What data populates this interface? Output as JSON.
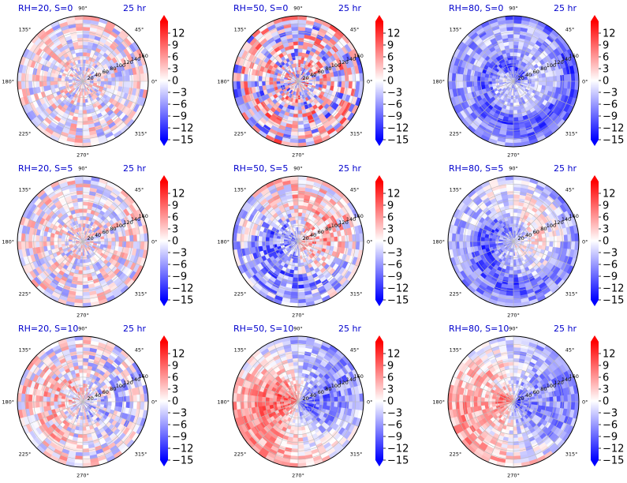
{
  "figure": {
    "layout": {
      "rows": 3,
      "cols": 3
    },
    "time_label": "25 hr",
    "title_color": "#0000cc",
    "palette": {
      "negative": "#0000ff",
      "neutral": "#ffffff",
      "positive": "#ff0000"
    }
  },
  "chart_data": [
    {
      "type": "heatmap",
      "projection": "polar",
      "title": "RH=20, S=0",
      "time": "25 hr",
      "angle_tick_labels": [
        "0°",
        "45°",
        "90°",
        "135°",
        "180°",
        "225°",
        "270°",
        "315°"
      ],
      "radial_tick_labels": [
        "20",
        "40",
        "60",
        "80",
        "100",
        "120",
        "140",
        "160"
      ],
      "rlim": [
        0,
        160
      ],
      "colorbar": {
        "ticks": [
          12,
          9,
          6,
          3,
          0,
          -3,
          -6,
          -9,
          -12,
          -15
        ],
        "vmin": -15,
        "vmax": 15,
        "extend": "both"
      },
      "field": {
        "mean": 0,
        "noise": 3,
        "radial_wave": 0,
        "swirl": 0
      }
    },
    {
      "type": "heatmap",
      "projection": "polar",
      "title": "RH=50, S=0",
      "time": "25 hr",
      "angle_tick_labels": [
        "0°",
        "45°",
        "90°",
        "135°",
        "180°",
        "225°",
        "270°",
        "315°"
      ],
      "radial_tick_labels": [
        "20",
        "40",
        "60",
        "80",
        "100",
        "120",
        "140",
        "160"
      ],
      "rlim": [
        0,
        160
      ],
      "colorbar": {
        "ticks": [
          12,
          9,
          6,
          3,
          0,
          -3,
          -6,
          -9,
          -12,
          -15
        ],
        "vmin": -15,
        "vmax": 15,
        "extend": "both"
      },
      "field": {
        "mean": 0,
        "noise": 4.5,
        "radial_wave": 2.5,
        "swirl": 0
      }
    },
    {
      "type": "heatmap",
      "projection": "polar",
      "title": "RH=80, S=0",
      "time": "25 hr",
      "angle_tick_labels": [
        "0°",
        "45°",
        "90°",
        "135°",
        "180°",
        "225°",
        "270°",
        "315°"
      ],
      "radial_tick_labels": [
        "20",
        "40",
        "60",
        "80",
        "100",
        "120",
        "140",
        "160"
      ],
      "rlim": [
        0,
        160
      ],
      "colorbar": {
        "ticks": [
          12,
          9,
          6,
          3,
          0,
          -3,
          -6,
          -9,
          -12,
          -15
        ],
        "vmin": -15,
        "vmax": 15,
        "extend": "both"
      },
      "field": {
        "mean": -5,
        "noise": 2,
        "radial_wave": 0,
        "swirl": 7
      }
    },
    {
      "type": "heatmap",
      "projection": "polar",
      "title": "RH=20, S=5",
      "time": "25 hr",
      "angle_tick_labels": [
        "0°",
        "45°",
        "90°",
        "135°",
        "180°",
        "225°",
        "270°",
        "315°"
      ],
      "radial_tick_labels": [
        "20",
        "40",
        "60",
        "80",
        "100",
        "120",
        "140",
        "160"
      ],
      "rlim": [
        0,
        160
      ],
      "colorbar": {
        "ticks": [
          12,
          9,
          6,
          3,
          0,
          -3,
          -6,
          -9,
          -12,
          -15
        ],
        "vmin": -15,
        "vmax": 15,
        "extend": "both"
      },
      "field": {
        "mean": 0,
        "noise": 3,
        "radial_wave": 0,
        "swirl": 0
      }
    },
    {
      "type": "heatmap",
      "projection": "polar",
      "title": "RH=50, S=5",
      "time": "25 hr",
      "angle_tick_labels": [
        "0°",
        "45°",
        "90°",
        "135°",
        "180°",
        "225°",
        "270°",
        "315°"
      ],
      "radial_tick_labels": [
        "20",
        "40",
        "60",
        "80",
        "100",
        "120",
        "140",
        "160"
      ],
      "rlim": [
        0,
        160
      ],
      "colorbar": {
        "ticks": [
          12,
          9,
          6,
          3,
          0,
          -3,
          -6,
          -9,
          -12,
          -15
        ],
        "vmin": -15,
        "vmax": 15,
        "extend": "both"
      },
      "field": {
        "mean": -1,
        "noise": 3,
        "radial_wave": 0,
        "swirl": 3,
        "dipole": 6,
        "dipole_dir": 0
      }
    },
    {
      "type": "heatmap",
      "projection": "polar",
      "title": "RH=80, S=5",
      "time": "25 hr",
      "angle_tick_labels": [
        "0°",
        "45°",
        "90°",
        "135°",
        "180°",
        "225°",
        "270°",
        "315°"
      ],
      "radial_tick_labels": [
        "20",
        "40",
        "60",
        "80",
        "100",
        "120",
        "140",
        "160"
      ],
      "rlim": [
        0,
        160
      ],
      "colorbar": {
        "ticks": [
          12,
          9,
          6,
          3,
          0,
          -3,
          -6,
          -9,
          -12,
          -15
        ],
        "vmin": -15,
        "vmax": 15,
        "extend": "both"
      },
      "field": {
        "mean": -3,
        "noise": 2,
        "radial_wave": 0,
        "swirl": 6,
        "dipole": 4,
        "dipole_dir": 0
      }
    },
    {
      "type": "heatmap",
      "projection": "polar",
      "title": "RH=20, S=10",
      "time": "25 hr",
      "angle_tick_labels": [
        "0°",
        "45°",
        "90°",
        "135°",
        "180°",
        "225°",
        "270°",
        "315°"
      ],
      "radial_tick_labels": [
        "20",
        "40",
        "60",
        "80",
        "100",
        "120",
        "140",
        "160"
      ],
      "rlim": [
        0,
        160
      ],
      "colorbar": {
        "ticks": [
          12,
          9,
          6,
          3,
          0,
          -3,
          -6,
          -9,
          -12,
          -15
        ],
        "vmin": -15,
        "vmax": 15,
        "extend": "both"
      },
      "field": {
        "mean": 0,
        "noise": 3,
        "radial_wave": 0,
        "swirl": 0,
        "dipole": 3,
        "dipole_dir": 135
      }
    },
    {
      "type": "heatmap",
      "projection": "polar",
      "title": "RH=50, S=10",
      "time": "25 hr",
      "angle_tick_labels": [
        "0°",
        "45°",
        "90°",
        "135°",
        "180°",
        "225°",
        "270°",
        "315°"
      ],
      "radial_tick_labels": [
        "20",
        "40",
        "60",
        "80",
        "100",
        "120",
        "140",
        "160"
      ],
      "rlim": [
        0,
        160
      ],
      "colorbar": {
        "ticks": [
          12,
          9,
          6,
          3,
          0,
          -3,
          -6,
          -9,
          -12,
          -15
        ],
        "vmin": -15,
        "vmax": 15,
        "extend": "both"
      },
      "field": {
        "mean": 0,
        "noise": 2,
        "radial_wave": 0,
        "swirl": 0,
        "dipole": 9,
        "dipole_dir": 155
      }
    },
    {
      "type": "heatmap",
      "projection": "polar",
      "title": "RH=80, S=10",
      "time": "25 hr",
      "angle_tick_labels": [
        "0°",
        "45°",
        "90°",
        "135°",
        "180°",
        "225°",
        "270°",
        "315°"
      ],
      "radial_tick_labels": [
        "20",
        "40",
        "60",
        "80",
        "100",
        "120",
        "140",
        "160"
      ],
      "rlim": [
        0,
        160
      ],
      "colorbar": {
        "ticks": [
          12,
          9,
          6,
          3,
          0,
          -3,
          -6,
          -9,
          -12,
          -15
        ],
        "vmin": -15,
        "vmax": 15,
        "extend": "both"
      },
      "field": {
        "mean": 0,
        "noise": 2,
        "radial_wave": 0,
        "swirl": 4,
        "dipole": 8,
        "dipole_dir": 150
      }
    }
  ]
}
